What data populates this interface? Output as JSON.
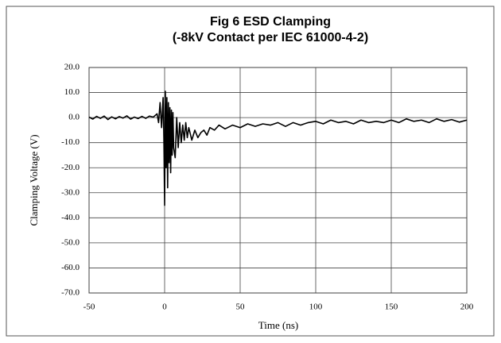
{
  "chart_data": {
    "type": "line",
    "title": "Fig 6 ESD Clamping",
    "subtitle": "(-8kV Contact per IEC 61000-4-2)",
    "x_label": "Time (ns)",
    "y_label": "Clamping Voltage (V)",
    "color": "#000000",
    "grid": true,
    "xlim": [
      -50,
      200
    ],
    "xticks": [
      -50,
      0,
      50,
      100,
      150,
      200
    ],
    "ylim": [
      -70,
      20
    ],
    "yticks": [
      {
        "value": 20,
        "label": "20.0"
      },
      {
        "value": 10,
        "label": "10.0"
      },
      {
        "value": 0,
        "label": "0.0"
      },
      {
        "value": -10,
        "label": "-10.0"
      },
      {
        "value": -20,
        "label": "-20.0"
      },
      {
        "value": -30,
        "label": "-30.0"
      },
      {
        "value": -40,
        "label": "-40.0"
      },
      {
        "value": -50,
        "label": "-50.0"
      },
      {
        "value": -60,
        "label": "-60.0"
      },
      {
        "value": -70,
        "label": "-70.0"
      }
    ],
    "x": [
      -50,
      -47.5,
      -45,
      -42.5,
      -40,
      -37.5,
      -35,
      -32.5,
      -30,
      -27.5,
      -25,
      -22.5,
      -20,
      -17.5,
      -15,
      -12.5,
      -10,
      -7.5,
      -5,
      -4,
      -3,
      -2,
      -1,
      -0.5,
      0,
      0.5,
      1,
      1.5,
      2,
      2.5,
      3,
      3.5,
      4,
      4.5,
      5,
      5.5,
      6,
      7,
      8,
      9,
      10,
      11,
      12,
      13,
      14,
      15,
      16,
      18,
      20,
      22,
      24,
      26,
      28,
      30,
      33,
      36,
      40,
      45,
      50,
      55,
      60,
      65,
      70,
      75,
      80,
      85,
      90,
      95,
      100,
      105,
      110,
      115,
      120,
      125,
      130,
      135,
      140,
      145,
      150,
      155,
      160,
      165,
      170,
      175,
      180,
      185,
      190,
      195,
      200
    ],
    "values": [
      0.2,
      -0.6,
      0.5,
      -0.3,
      0.6,
      -0.8,
      0.3,
      -0.5,
      0.4,
      -0.2,
      0.7,
      -0.6,
      0.2,
      -0.4,
      0.5,
      -0.3,
      0.6,
      0.2,
      1.5,
      -2,
      6,
      -4,
      8,
      -8,
      -35,
      10.5,
      -20,
      8,
      -28,
      6,
      -18,
      4,
      -22,
      3,
      -15,
      2,
      -12,
      -16,
      0,
      -12,
      -2,
      -10,
      -3,
      -9,
      -2,
      -8,
      -4,
      -9,
      -5,
      -8,
      -6,
      -5,
      -7,
      -4,
      -5,
      -3,
      -4.5,
      -3,
      -4,
      -2.5,
      -3.5,
      -2.5,
      -3,
      -2,
      -3.5,
      -2,
      -3,
      -2,
      -1.5,
      -2.5,
      -1,
      -2,
      -1.5,
      -2.5,
      -1,
      -2,
      -1.5,
      -2,
      -1,
      -2,
      -0.5,
      -1.5,
      -1,
      -2,
      -0.5,
      -1.5,
      -0.8,
      -1.8,
      -1
    ]
  }
}
